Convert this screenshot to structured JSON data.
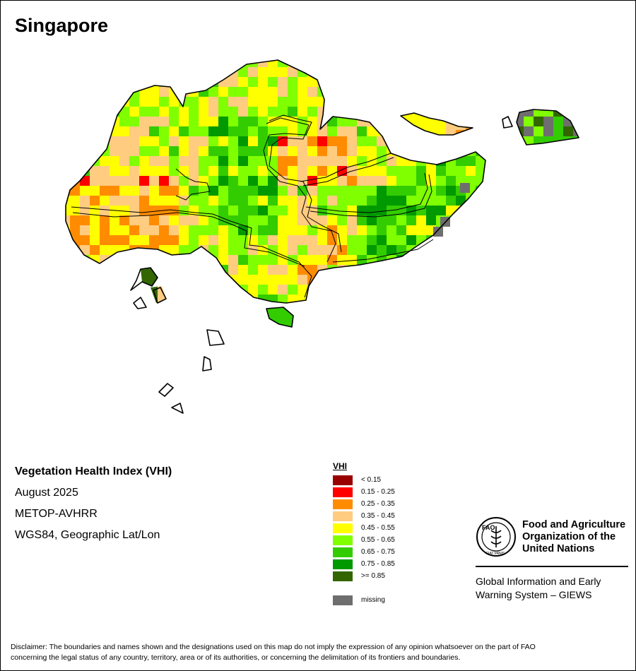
{
  "map": {
    "title": "Singapore",
    "palette": {
      "c0": "#990000",
      "c1": "#ff0000",
      "c2": "#ff8c00",
      "c3": "#ffcc80",
      "c4": "#ffff00",
      "c5": "#80ff00",
      "c6": "#33cc00",
      "c7": "#009900",
      "c8": "#336600",
      "missing": "#6e6e6e"
    }
  },
  "info": {
    "title": "Vegetation Health Index (VHI)",
    "date": "August 2025",
    "sensor": "METOP-AVHRR",
    "projection": "WGS84, Geographic Lat/Lon"
  },
  "legend": {
    "title": "VHI",
    "items": [
      {
        "label": "< 0.15",
        "color": "#990000"
      },
      {
        "label": "0.15 - 0.25",
        "color": "#ff0000"
      },
      {
        "label": "0.25 - 0.35",
        "color": "#ff8c00"
      },
      {
        "label": "0.35 - 0.45",
        "color": "#ffcc80"
      },
      {
        "label": "0.45 - 0.55",
        "color": "#ffff00"
      },
      {
        "label": "0.55 - 0.65",
        "color": "#80ff00"
      },
      {
        "label": "0.65 - 0.75",
        "color": "#33cc00"
      },
      {
        "label": "0.75 - 0.85",
        "color": "#009900"
      },
      {
        "label": ">= 0.85",
        "color": "#336600"
      }
    ],
    "missing": {
      "label": "missing",
      "color": "#6e6e6e"
    }
  },
  "fao": {
    "emblem_ring_text_top": "FAO",
    "emblem_ring_text_bottom": "FIAT PANIS",
    "name_line1": "Food and Agriculture",
    "name_line2": "Organization of the",
    "name_line3": "United Nations",
    "giews_line1": "Global Information and Early",
    "giews_line2": "Warning System – GIEWS"
  },
  "disclaimer": {
    "line1": "Disclaimer: The boundaries and names shown and the designations used on this map do not imply the expression of any opinion whatsoever on the part of FAO",
    "line2": "concerning the legal status of any country, territory, area or of its authorities, or concerning the delimitation of its frontiers and boundaries."
  }
}
